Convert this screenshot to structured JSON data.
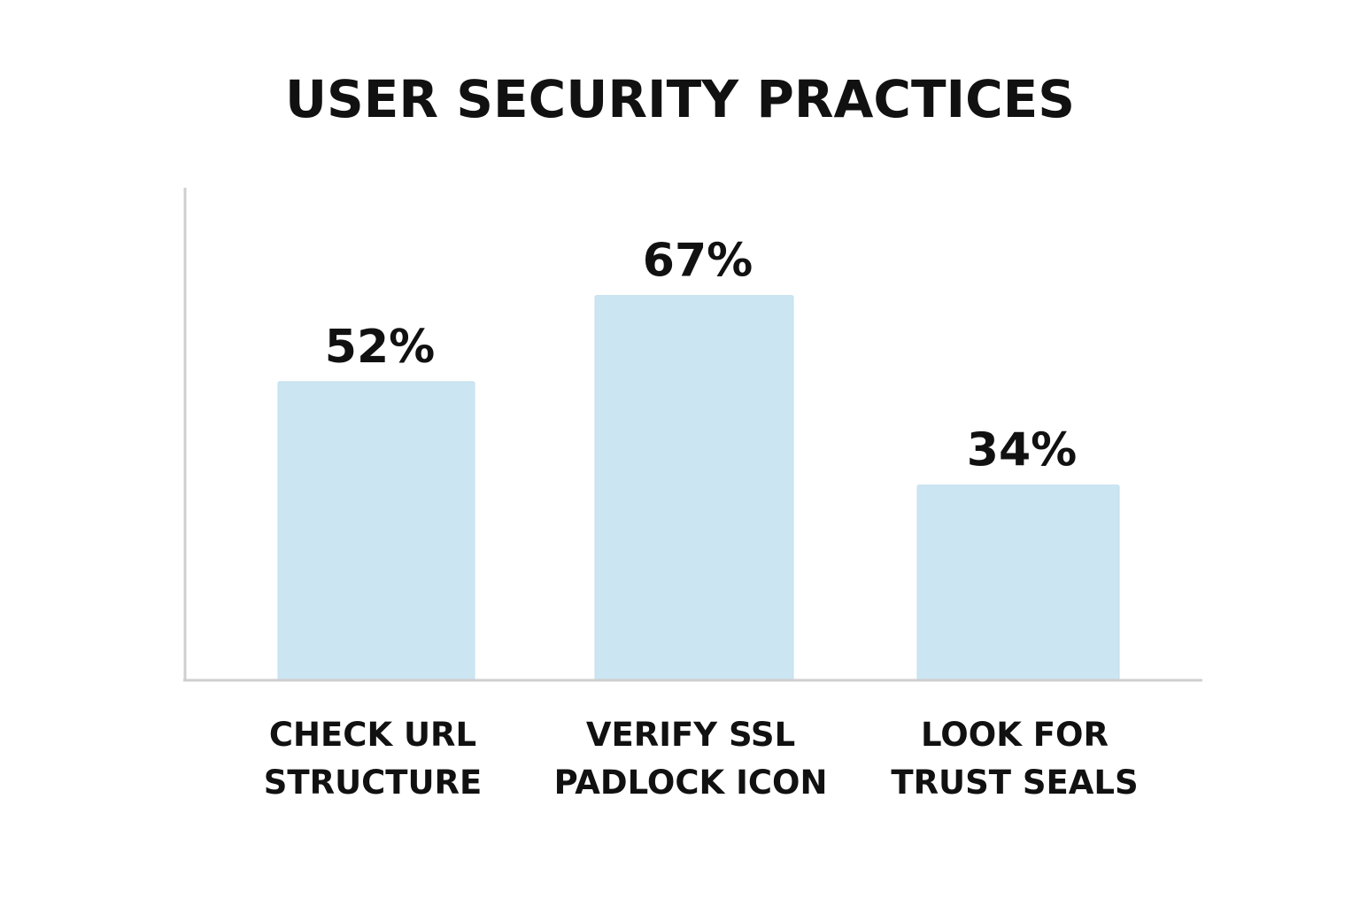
{
  "chart_data": {
    "type": "bar",
    "title": "USER SECURITY PRACTICES",
    "xlabel": "",
    "ylabel": "",
    "categories": [
      [
        "CHECK URL",
        "STRUCTURE"
      ],
      [
        "VERIFY SSL",
        "PADLOCK ICON"
      ],
      [
        "LOOK FOR",
        "TRUST SEALS"
      ]
    ],
    "values": [
      52,
      67,
      34
    ],
    "value_labels": [
      "52%",
      "67%",
      "34%"
    ],
    "unit": "%",
    "ylim": [
      0,
      87
    ],
    "grid": false,
    "legend": "none",
    "colors": {
      "bar": "#cce5f2",
      "bar_edge": "#c3dfee",
      "axis": "#cfcfcf",
      "text": "#111111"
    }
  }
}
